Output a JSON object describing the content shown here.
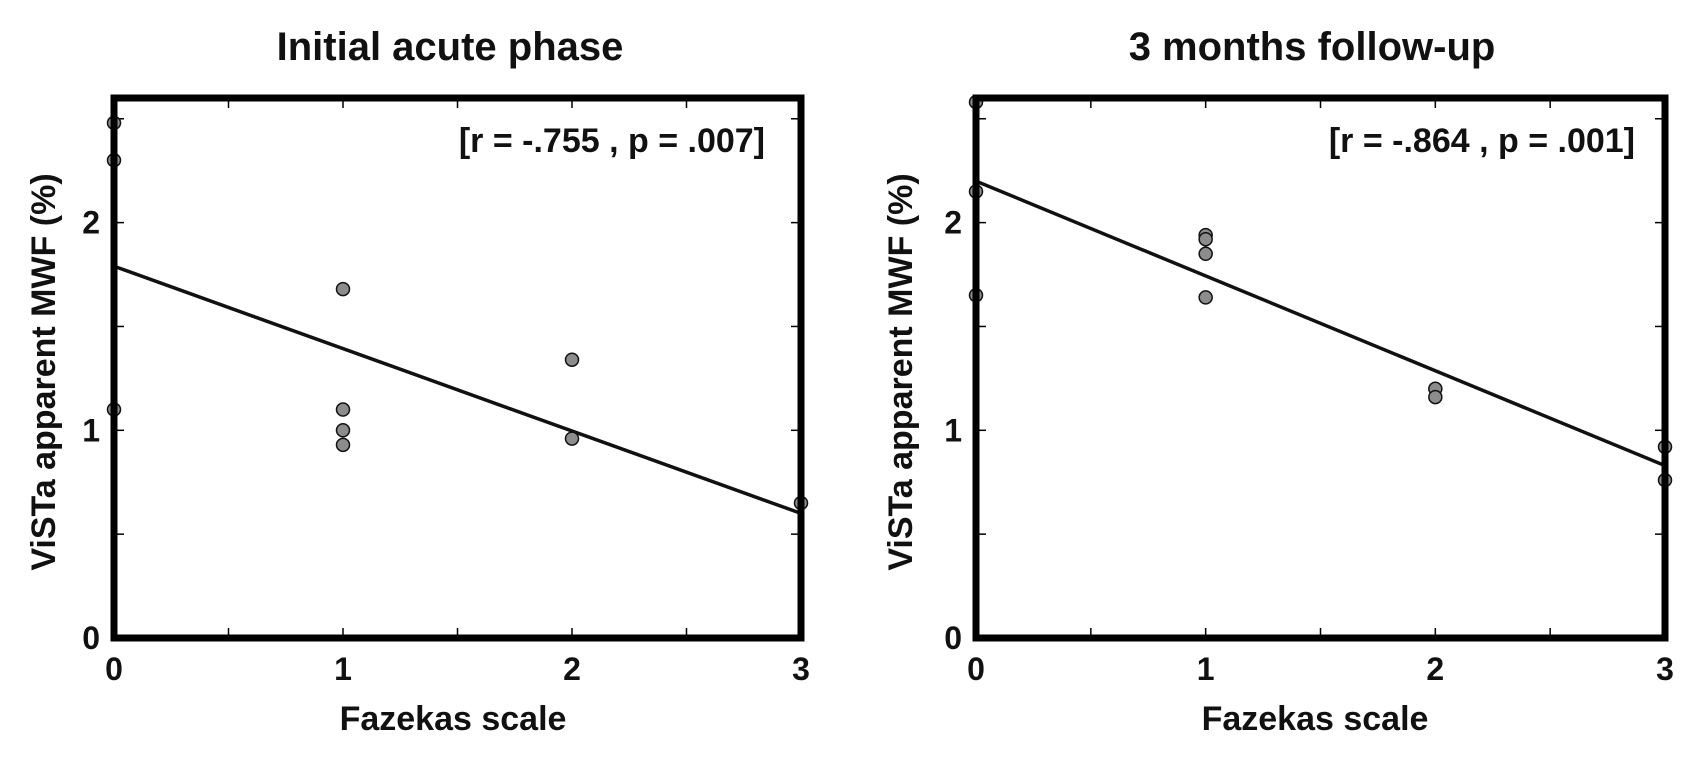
{
  "chart_data": [
    {
      "type": "scatter",
      "title": "Initial acute phase",
      "xlabel": "Fazekas scale",
      "ylabel": "ViSTa apparent MWF (%)",
      "xlim": [
        0,
        3
      ],
      "ylim": [
        0,
        2.6
      ],
      "x_ticks": [
        0,
        1,
        2,
        3
      ],
      "x_tick_labels": [
        "0",
        "1",
        "2",
        "3"
      ],
      "x_minor_ticks": [
        0.5,
        1.5,
        2.5
      ],
      "y_ticks": [
        0,
        1,
        2
      ],
      "y_tick_labels": [
        "0",
        "1",
        "2"
      ],
      "y_minor_ticks": [
        0.5,
        1.5,
        2.5
      ],
      "annotation": "[r = -.755 , p = .007]",
      "grid": false,
      "points": [
        {
          "x": 0,
          "y": 2.48
        },
        {
          "x": 0,
          "y": 2.3
        },
        {
          "x": 0,
          "y": 1.1
        },
        {
          "x": 1,
          "y": 1.68
        },
        {
          "x": 1,
          "y": 1.1
        },
        {
          "x": 1,
          "y": 1.0
        },
        {
          "x": 1,
          "y": 0.93
        },
        {
          "x": 2,
          "y": 1.34
        },
        {
          "x": 2,
          "y": 0.96
        },
        {
          "x": 3,
          "y": 0.65
        }
      ],
      "fit_line": {
        "x": [
          0,
          3
        ],
        "y": [
          1.79,
          0.6
        ]
      },
      "marker_color": "#8c8c8c",
      "line_color": "#111111"
    },
    {
      "type": "scatter",
      "title": "3 months follow-up",
      "xlabel": "Fazekas scale",
      "ylabel": "ViSTa apparent MWF (%)",
      "xlim": [
        0,
        3
      ],
      "ylim": [
        0,
        2.6
      ],
      "x_ticks": [
        0,
        1,
        2,
        3
      ],
      "x_tick_labels": [
        "0",
        "1",
        "2",
        "3"
      ],
      "x_minor_ticks": [
        0.5,
        1.5,
        2.5
      ],
      "y_ticks": [
        0,
        1,
        2
      ],
      "y_tick_labels": [
        "0",
        "1",
        "2"
      ],
      "y_minor_ticks": [
        0.5,
        1.5,
        2.5
      ],
      "annotation": "[r = -.864 , p = .001]",
      "grid": false,
      "points": [
        {
          "x": 0,
          "y": 2.58
        },
        {
          "x": 0,
          "y": 2.15
        },
        {
          "x": 0,
          "y": 1.65
        },
        {
          "x": 1,
          "y": 1.94
        },
        {
          "x": 1,
          "y": 1.92
        },
        {
          "x": 1,
          "y": 1.85
        },
        {
          "x": 1,
          "y": 1.64
        },
        {
          "x": 2,
          "y": 1.2
        },
        {
          "x": 2,
          "y": 1.16
        },
        {
          "x": 3,
          "y": 0.92
        },
        {
          "x": 3,
          "y": 0.76
        }
      ],
      "fit_line": {
        "x": [
          0,
          3
        ],
        "y": [
          2.2,
          0.83
        ]
      },
      "marker_color": "#8c8c8c",
      "line_color": "#111111"
    }
  ]
}
